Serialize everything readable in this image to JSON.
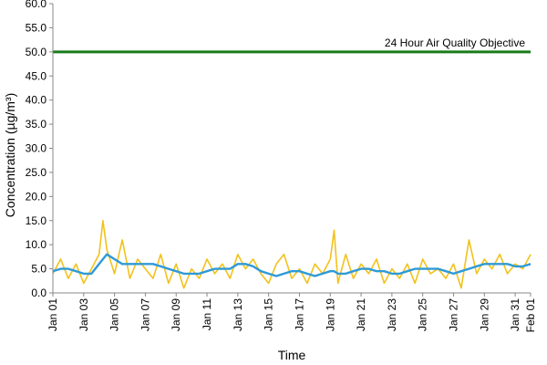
{
  "chart_data": {
    "type": "line",
    "xlabel": "Time",
    "ylabel": "Concentration (µg/m³)",
    "ylim": [
      0,
      60
    ],
    "xlim": [
      "2018-01-01",
      "2018-02-01"
    ],
    "x_tick_labels": [
      "Jan 01",
      "Jan 03",
      "Jan 05",
      "Jan 07",
      "Jan 09",
      "Jan 11",
      "Jan 13",
      "Jan 15",
      "Jan 17",
      "Jan 19",
      "Jan 21",
      "Jan 23",
      "Jan 25",
      "Jan 27",
      "Jan 29",
      "Jan 31",
      "Feb 01"
    ],
    "y_tick_labels": [
      "0.0",
      "5.0",
      "10.0",
      "15.0",
      "20.0",
      "25.0",
      "30.0",
      "35.0",
      "40.0",
      "45.0",
      "50.0",
      "55.0",
      "60.0"
    ],
    "grid": false,
    "reference_line": {
      "label": "24 Hour Air Quality Objective",
      "value": 50,
      "color": "#1a7a1a"
    },
    "series": [
      {
        "color": "#f2c21b",
        "x": [
          "Jan 01",
          "Jan 01 12:00",
          "Jan 02",
          "Jan 02 12:00",
          "Jan 03",
          "Jan 03 12:00",
          "Jan 04",
          "Jan 04 06:00",
          "Jan 04 12:00",
          "Jan 05",
          "Jan 05 12:00",
          "Jan 06",
          "Jan 06 12:00",
          "Jan 07",
          "Jan 07 12:00",
          "Jan 08",
          "Jan 08 12:00",
          "Jan 09",
          "Jan 09 12:00",
          "Jan 10",
          "Jan 10 12:00",
          "Jan 11",
          "Jan 11 12:00",
          "Jan 12",
          "Jan 12 12:00",
          "Jan 13",
          "Jan 13 12:00",
          "Jan 14",
          "Jan 14 12:00",
          "Jan 15",
          "Jan 15 12:00",
          "Jan 16",
          "Jan 16 12:00",
          "Jan 17",
          "Jan 17 12:00",
          "Jan 18",
          "Jan 18 12:00",
          "Jan 19",
          "Jan 19 06:00",
          "Jan 19 12:00",
          "Jan 20",
          "Jan 20 12:00",
          "Jan 21",
          "Jan 21 12:00",
          "Jan 22",
          "Jan 22 12:00",
          "Jan 23",
          "Jan 23 12:00",
          "Jan 24",
          "Jan 24 12:00",
          "Jan 25",
          "Jan 25 12:00",
          "Jan 26",
          "Jan 26 12:00",
          "Jan 27",
          "Jan 27 12:00",
          "Jan 28",
          "Jan 28 12:00",
          "Jan 29",
          "Jan 29 12:00",
          "Jan 30",
          "Jan 30 12:00",
          "Jan 31",
          "Jan 31 12:00",
          "Feb 01"
        ],
        "values": [
          4,
          7,
          3,
          6,
          2,
          5,
          8,
          15,
          9,
          4,
          11,
          3,
          7,
          5,
          3,
          8,
          2,
          6,
          1,
          5,
          3,
          7,
          4,
          6,
          3,
          8,
          5,
          7,
          4,
          2,
          6,
          8,
          3,
          5,
          2,
          6,
          4,
          7,
          13,
          2,
          8,
          3,
          6,
          4,
          7,
          2,
          5,
          3,
          6,
          2,
          7,
          4,
          5,
          3,
          6,
          1,
          11,
          4,
          7,
          5,
          8,
          4,
          6,
          5,
          8
        ]
      },
      {
        "color": "#2e9ad6",
        "x": [
          "Jan 01",
          "Jan 01 12:00",
          "Jan 02",
          "Jan 02 12:00",
          "Jan 03",
          "Jan 03 12:00",
          "Jan 04",
          "Jan 04 06:00",
          "Jan 04 12:00",
          "Jan 05",
          "Jan 05 12:00",
          "Jan 06",
          "Jan 06 12:00",
          "Jan 07",
          "Jan 07 12:00",
          "Jan 08",
          "Jan 08 12:00",
          "Jan 09",
          "Jan 09 12:00",
          "Jan 10",
          "Jan 10 12:00",
          "Jan 11",
          "Jan 11 12:00",
          "Jan 12",
          "Jan 12 12:00",
          "Jan 13",
          "Jan 13 12:00",
          "Jan 14",
          "Jan 14 12:00",
          "Jan 15",
          "Jan 15 12:00",
          "Jan 16",
          "Jan 16 12:00",
          "Jan 17",
          "Jan 17 12:00",
          "Jan 18",
          "Jan 18 12:00",
          "Jan 19",
          "Jan 19 06:00",
          "Jan 19 12:00",
          "Jan 20",
          "Jan 20 12:00",
          "Jan 21",
          "Jan 21 12:00",
          "Jan 22",
          "Jan 22 12:00",
          "Jan 23",
          "Jan 23 12:00",
          "Jan 24",
          "Jan 24 12:00",
          "Jan 25",
          "Jan 25 12:00",
          "Jan 26",
          "Jan 26 12:00",
          "Jan 27",
          "Jan 27 12:00",
          "Jan 28",
          "Jan 28 12:00",
          "Jan 29",
          "Jan 29 12:00",
          "Jan 30",
          "Jan 30 12:00",
          "Jan 31",
          "Jan 31 12:00",
          "Feb 01"
        ],
        "values": [
          4.5,
          5,
          5,
          4.5,
          4,
          4,
          6,
          7,
          8,
          7,
          6,
          6,
          6,
          6,
          6,
          5.5,
          5,
          4.5,
          4,
          4,
          4,
          4.5,
          5,
          5,
          5,
          6,
          6,
          5.5,
          4.5,
          4,
          3.5,
          4,
          4.5,
          4.5,
          4,
          3.5,
          4,
          4.5,
          4.5,
          4,
          4,
          4.5,
          5,
          5,
          4.5,
          4.5,
          4,
          4,
          4.5,
          5,
          5,
          5,
          5,
          4.5,
          4,
          4.5,
          5,
          5.5,
          6,
          6,
          6,
          6,
          5.5,
          5.5,
          6
        ]
      }
    ]
  }
}
